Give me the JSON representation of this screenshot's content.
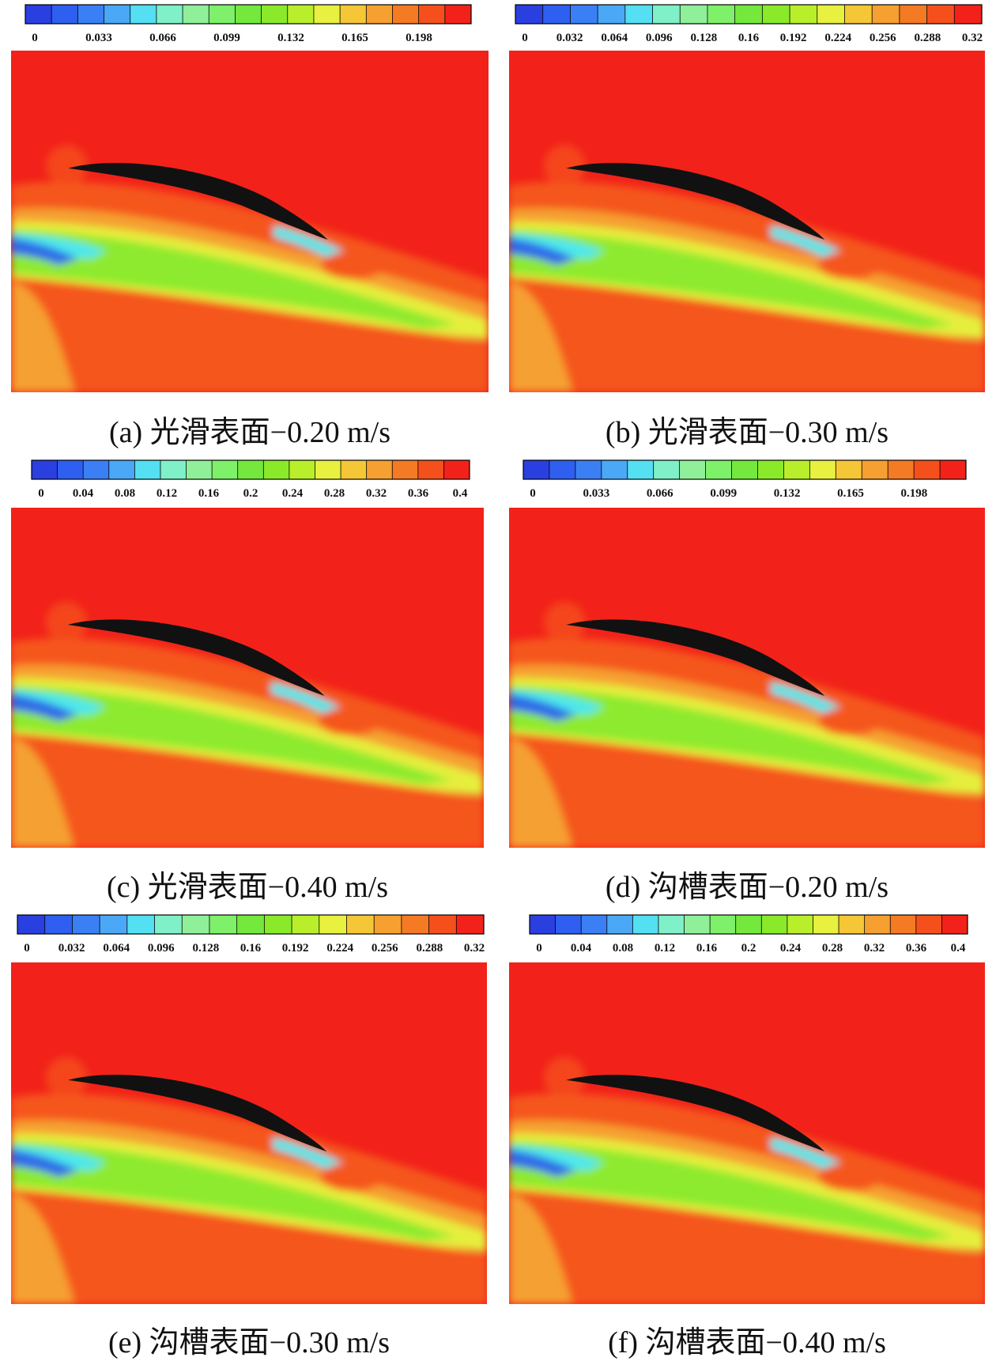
{
  "figure": {
    "panels": [
      {
        "caption": "(a) 光滑表面−0.20 m/s",
        "colorbar_ticks": [
          "0",
          "0.033",
          "0.066",
          "0.099",
          "0.132",
          "0.165",
          "0.198"
        ],
        "colorbar_range": [
          0,
          0.22
        ]
      },
      {
        "caption": "(b) 光滑表面−0.30 m/s",
        "colorbar_ticks": [
          "0",
          "0.032",
          "0.064",
          "0.096",
          "0.128",
          "0.16",
          "0.192",
          "0.224",
          "0.256",
          "0.288",
          "0.32"
        ],
        "colorbar_range": [
          0,
          0.32
        ]
      },
      {
        "caption": "(c) 光滑表面−0.40 m/s",
        "colorbar_ticks": [
          "0",
          "0.04",
          "0.08",
          "0.12",
          "0.16",
          "0.2",
          "0.24",
          "0.28",
          "0.32",
          "0.36",
          "0.4"
        ],
        "colorbar_range": [
          0,
          0.4
        ]
      },
      {
        "caption": "(d) 沟槽表面−0.20 m/s",
        "colorbar_ticks": [
          "0",
          "0.033",
          "0.066",
          "0.099",
          "0.132",
          "0.165",
          "0.198"
        ],
        "colorbar_range": [
          0,
          0.22
        ]
      },
      {
        "caption": "(e) 沟槽表面−0.30 m/s",
        "colorbar_ticks": [
          "0",
          "0.032",
          "0.064",
          "0.096",
          "0.128",
          "0.16",
          "0.192",
          "0.224",
          "0.256",
          "0.288",
          "0.32"
        ],
        "colorbar_range": [
          0,
          0.32
        ]
      },
      {
        "caption": "(f) 沟槽表面−0.40 m/s",
        "colorbar_ticks": [
          "0",
          "0.04",
          "0.08",
          "0.12",
          "0.16",
          "0.2",
          "0.24",
          "0.28",
          "0.32",
          "0.36",
          "0.4"
        ],
        "colorbar_range": [
          0,
          0.4
        ]
      }
    ],
    "colormap": [
      "#2a3fe0",
      "#2f5ff0",
      "#3b7ff5",
      "#4aa8f6",
      "#54dff2",
      "#7ff0c8",
      "#90f09a",
      "#7ef06a",
      "#74e83c",
      "#8aea2a",
      "#b9ef2a",
      "#e8f040",
      "#f5c636",
      "#f5a030",
      "#f57a24",
      "#f5501c",
      "#f2221a"
    ],
    "colors": {
      "background_flow": "#f2221a",
      "wake_orange": "#f5561e",
      "wake_light_orange": "#f5a030",
      "wake_yellow": "#e6ee3c",
      "wake_green": "#8eea2e",
      "wake_cyan": "#4ee8ec",
      "wake_blue": "#2f6ae8",
      "fish_body": "#111111"
    }
  }
}
